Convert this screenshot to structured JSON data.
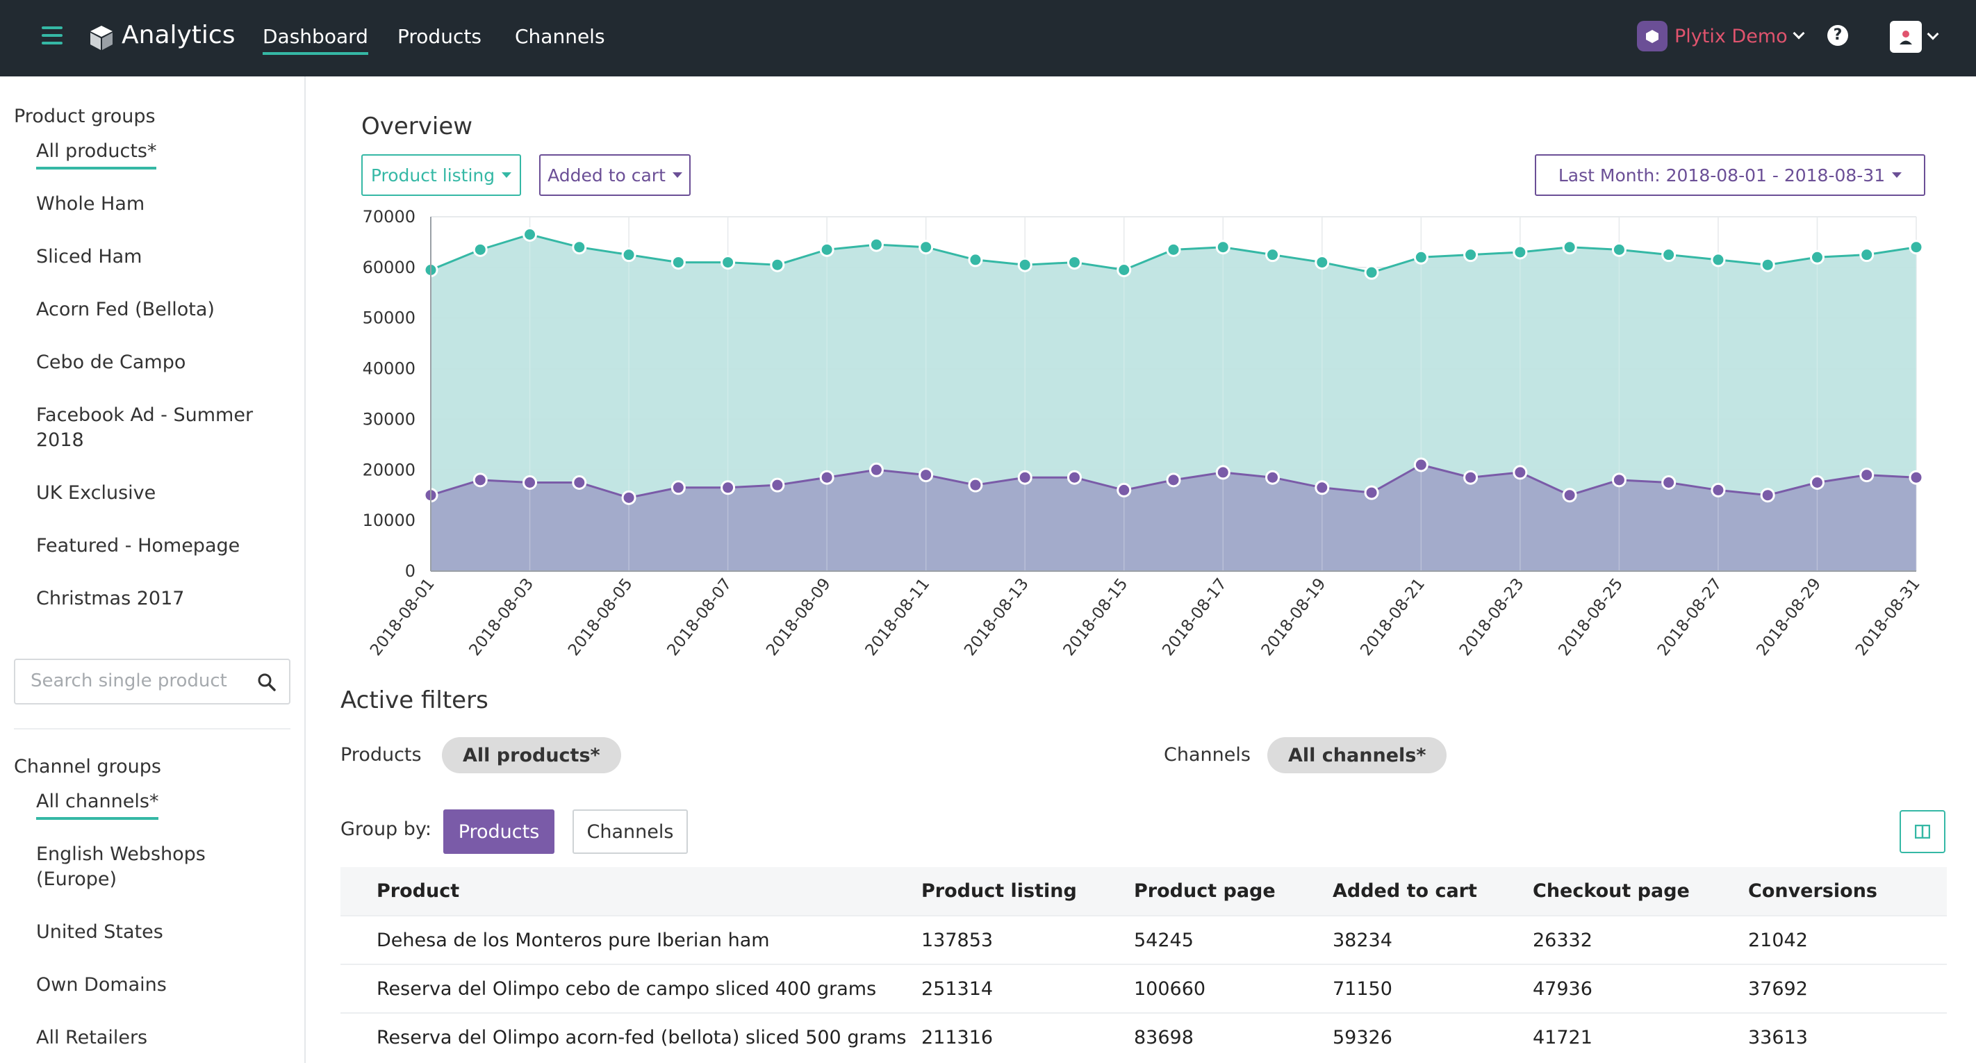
{
  "nav": {
    "brand": "Analytics",
    "links": [
      "Dashboard",
      "Products",
      "Channels"
    ],
    "account_name": "Plytix Demo",
    "help": "?"
  },
  "sidebar": {
    "product_groups_heading": "Product groups",
    "product_groups": [
      "All products*",
      "Whole Ham",
      "Sliced Ham",
      "Acorn Fed (Bellota)",
      "Cebo de Campo",
      "Facebook Ad - Summer 2018",
      "UK Exclusive",
      "Featured - Homepage",
      "Christmas 2017"
    ],
    "search_placeholder": "Search single product",
    "channel_groups_heading": "Channel groups",
    "channel_groups": [
      "All channels*",
      "English Webshops (Europe)",
      "United States",
      "Own Domains",
      "All Retailers"
    ]
  },
  "overview": {
    "title": "Overview",
    "metric1_label": "Product listing",
    "metric2_label": "Added to cart",
    "date_range": "Last Month: 2018-08-01 - 2018-08-31"
  },
  "colors": {
    "teal": "#35b8a5",
    "teal_fill": "#bfe4e2",
    "purple": "#7a5ba8",
    "purple_fill": "#a3abcb",
    "nav_bg": "#222a31"
  },
  "chart_data": {
    "type": "area",
    "title": "Overview",
    "xlabel": "",
    "ylabel": "",
    "ylim": [
      0,
      70000
    ],
    "yticks": [
      0,
      10000,
      20000,
      30000,
      40000,
      50000,
      60000,
      70000
    ],
    "x": [
      "2018-08-01",
      "2018-08-02",
      "2018-08-03",
      "2018-08-04",
      "2018-08-05",
      "2018-08-06",
      "2018-08-07",
      "2018-08-08",
      "2018-08-09",
      "2018-08-10",
      "2018-08-11",
      "2018-08-12",
      "2018-08-13",
      "2018-08-14",
      "2018-08-15",
      "2018-08-16",
      "2018-08-17",
      "2018-08-18",
      "2018-08-19",
      "2018-08-20",
      "2018-08-21",
      "2018-08-22",
      "2018-08-23",
      "2018-08-24",
      "2018-08-25",
      "2018-08-26",
      "2018-08-27",
      "2018-08-28",
      "2018-08-29",
      "2018-08-30",
      "2018-08-31"
    ],
    "xtick_labels": [
      "2018-08-01",
      "2018-08-03",
      "2018-08-05",
      "2018-08-07",
      "2018-08-09",
      "2018-08-11",
      "2018-08-13",
      "2018-08-15",
      "2018-08-17",
      "2018-08-19",
      "2018-08-21",
      "2018-08-23",
      "2018-08-25",
      "2018-08-27",
      "2018-08-29",
      "2018-08-31"
    ],
    "series": [
      {
        "name": "Product listing",
        "values": [
          59500,
          63500,
          66500,
          64000,
          62500,
          61000,
          61000,
          60500,
          63500,
          64500,
          64000,
          61500,
          60500,
          61000,
          59500,
          63500,
          64000,
          62500,
          61000,
          59000,
          62000,
          62500,
          63000,
          64000,
          63500,
          62500,
          61500,
          60500,
          62000,
          62500,
          64000
        ]
      },
      {
        "name": "Added to cart",
        "values": [
          15000,
          18000,
          17500,
          17500,
          14500,
          16500,
          16500,
          17000,
          18500,
          20000,
          19000,
          17000,
          18500,
          18500,
          16000,
          18000,
          19500,
          18500,
          16500,
          15500,
          21000,
          18500,
          19500,
          15000,
          18000,
          17500,
          16000,
          15000,
          17500,
          19000,
          18500
        ]
      }
    ]
  },
  "filters": {
    "title": "Active filters",
    "products_label": "Products",
    "products_value": "All products*",
    "channels_label": "Channels",
    "channels_value": "All channels*",
    "group_by_label": "Group by:",
    "group_by_options": [
      "Products",
      "Channels"
    ]
  },
  "table": {
    "headers": [
      "Product",
      "Product listing",
      "Product page",
      "Added to cart",
      "Checkout page",
      "Conversions"
    ],
    "rows": [
      [
        "Dehesa de los Monteros pure Iberian ham",
        "137853",
        "54245",
        "38234",
        "26332",
        "21042"
      ],
      [
        "Reserva del Olimpo cebo de campo sliced 400 grams",
        "251314",
        "100660",
        "71150",
        "47936",
        "37692"
      ],
      [
        "Reserva del Olimpo acorn-fed (bellota) sliced 500 grams",
        "211316",
        "83698",
        "59326",
        "41721",
        "33613"
      ]
    ]
  }
}
